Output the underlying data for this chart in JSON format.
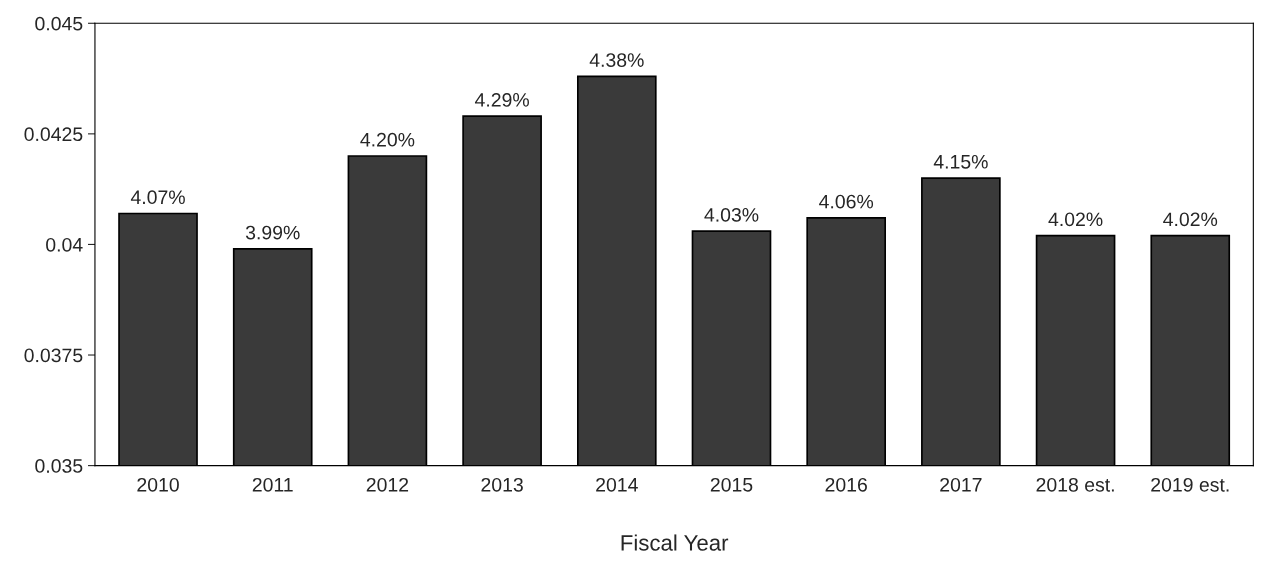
{
  "chart_data": {
    "type": "bar",
    "categories": [
      "2010",
      "2011",
      "2012",
      "2013",
      "2014",
      "2015",
      "2016",
      "2017",
      "2018 est.",
      "2019 est."
    ],
    "values": [
      0.0407,
      0.0399,
      0.042,
      0.0429,
      0.0438,
      0.0403,
      0.0406,
      0.0415,
      0.0402,
      0.0402
    ],
    "value_labels": [
      "4.07%",
      "3.99%",
      "4.20%",
      "4.29%",
      "4.38%",
      "4.03%",
      "4.06%",
      "4.15%",
      "4.02%",
      "4.02%"
    ],
    "color": "#3a3a3a",
    "xlabel": "Fiscal Year",
    "ylim": [
      0.035,
      0.045
    ],
    "yticks": [
      {
        "value": 0.035,
        "label": "0.035"
      },
      {
        "value": 0.0375,
        "label": "0.0375"
      },
      {
        "value": 0.04,
        "label": "0.04"
      },
      {
        "value": 0.0425,
        "label": "0.0425"
      },
      {
        "value": 0.045,
        "label": "0.045"
      }
    ],
    "grid": false,
    "legend": false
  }
}
